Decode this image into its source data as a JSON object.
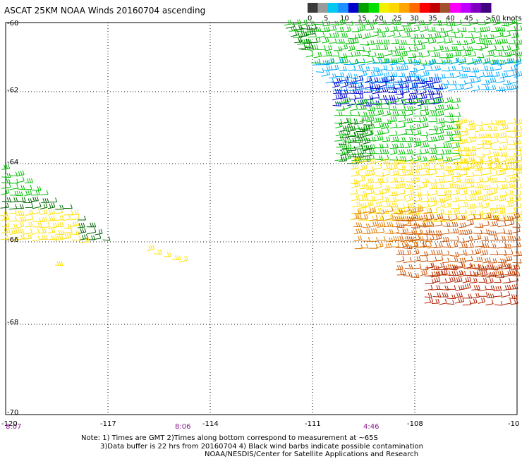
{
  "title": "ASCAT 25KM NOAA Winds 20160704 ascending",
  "legend": {
    "labels": [
      "0",
      "5",
      "10",
      "15",
      "20",
      "25",
      "30",
      "35",
      "40",
      "45",
      ">50 knots"
    ],
    "colors": [
      "#3a3a3a",
      "#9a9a9a",
      "#00c8f0",
      "#1e90ff",
      "#0000c8",
      "#00a000",
      "#00e000",
      "#f0f000",
      "#ffd700",
      "#ffa500",
      "#ff6a00",
      "#ff0000",
      "#c00000",
      "#a0522d",
      "#ff00ff",
      "#c000ff",
      "#8000c0",
      "#400080"
    ]
  },
  "axes": {
    "x_ticks": [
      "-120",
      "-117",
      "-114",
      "-111",
      "-108",
      "-10"
    ],
    "y_ticks": [
      "-60",
      "-62",
      "-64",
      "-66",
      "-68",
      "-70"
    ]
  },
  "times": [
    "8:07",
    "8:06",
    "4:46"
  ],
  "notes": {
    "line1": "Note: 1) Times are GMT 2)Times along bottom correspond to measurement at ~65S",
    "line2": "3)Data buffer is 22 hrs from 20160704 4) Black wind barbs indicate possible contamination",
    "line3": "NOAA/NESDIS/Center for Satellite Applications and Research"
  },
  "swath_colors": {
    "darkgreen": "#006400",
    "green": "#00c000",
    "lightblue": "#00aaff",
    "blue": "#0000cc",
    "yellow": "#ffe000",
    "orange": "#e07a00",
    "darkorange": "#c85000",
    "red": "#b02000"
  }
}
